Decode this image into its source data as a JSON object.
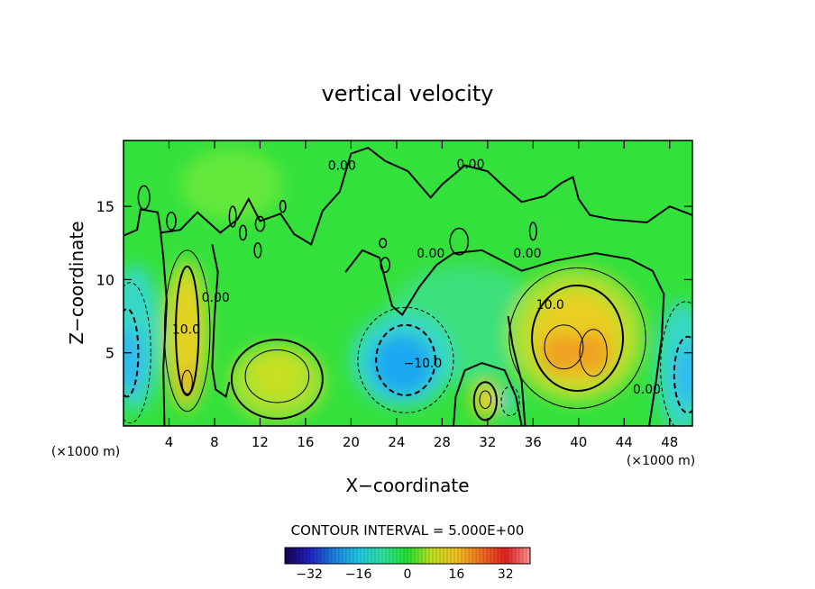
{
  "chart_data": {
    "type": "heatmap",
    "title": "vertical velocity",
    "xlabel": "X−coordinate",
    "ylabel": "Z−coordinate",
    "x_unit_label": "(×1000 m)",
    "x_unit_label_right": "(×1000 m)",
    "xlim": [
      0,
      50
    ],
    "ylim": [
      0,
      19.5
    ],
    "x_ticks": [
      4,
      8,
      12,
      16,
      20,
      24,
      28,
      32,
      36,
      40,
      44,
      48
    ],
    "y_ticks": [
      5,
      10,
      15
    ],
    "contour_interval_text": "CONTOUR INTERVAL = 5.000E+00",
    "contour_interval": 5.0,
    "contour_labels": [
      {
        "text": "0.00",
        "x": 19.2,
        "y": 17.5
      },
      {
        "text": "0.00",
        "x": 30.5,
        "y": 17.6
      },
      {
        "text": "0.00",
        "x": 27.0,
        "y": 11.5
      },
      {
        "text": "0.00",
        "x": 35.5,
        "y": 11.5
      },
      {
        "text": "0.00",
        "x": 8.1,
        "y": 8.5
      },
      {
        "text": "0.00",
        "x": 46.0,
        "y": 2.2
      },
      {
        "text": "10.0",
        "x": 5.5,
        "y": 6.3
      },
      {
        "text": "10.0",
        "x": 37.5,
        "y": 8.0
      },
      {
        "text": "−10.0",
        "x": 26.3,
        "y": 4.0
      }
    ],
    "features": [
      {
        "name": "updraft",
        "x": 5.5,
        "z": 6.0,
        "peak": 15
      },
      {
        "name": "downdraft",
        "x": 24.5,
        "z": 4.5,
        "peak": -15
      },
      {
        "name": "updraft",
        "x": 39.5,
        "z": 5.8,
        "peak": 20
      },
      {
        "name": "downdraft",
        "x": 49.5,
        "z": 4.0,
        "peak": -15
      },
      {
        "name": "downdraft",
        "x": 0.5,
        "z": 5.0,
        "peak": -15
      },
      {
        "name": "updraft",
        "x": 13.0,
        "z": 3.5,
        "peak": 5
      },
      {
        "name": "updraft",
        "x": 31.5,
        "z": 1.5,
        "peak": 10
      }
    ],
    "colorbar": {
      "range": [
        -40,
        40
      ],
      "ticks": [
        -32,
        -16,
        0,
        16,
        32
      ],
      "tick_labels": [
        "−32",
        "−16",
        "0",
        "16",
        "32"
      ],
      "colormap": [
        "#1a0050",
        "#2020c0",
        "#1a7fe0",
        "#20c8e0",
        "#30e0a0",
        "#20e030",
        "#c0e020",
        "#f0c020",
        "#f07020",
        "#e02020",
        "#ff9090"
      ]
    }
  }
}
